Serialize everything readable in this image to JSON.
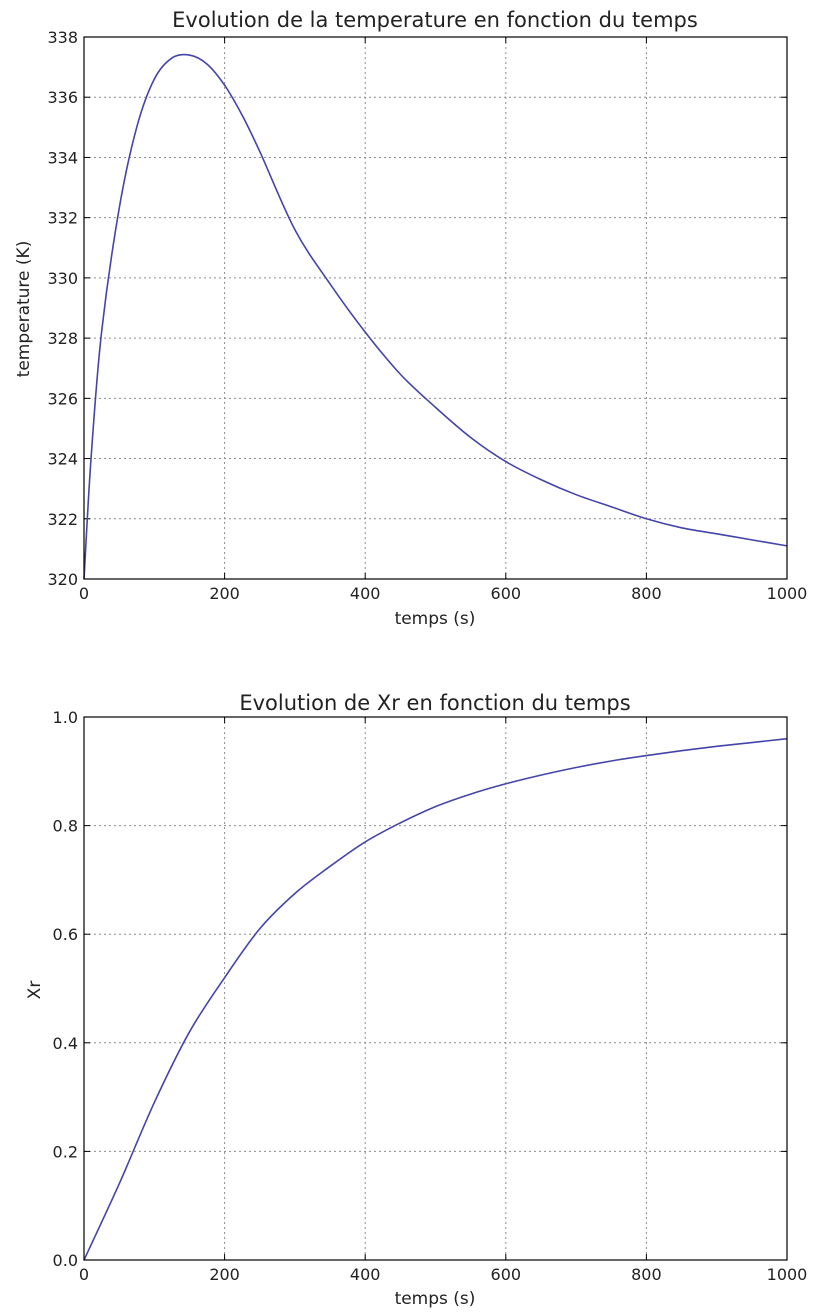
{
  "chart_data": [
    {
      "type": "line",
      "title": "Evolution de la temperature en fonction du temps",
      "xlabel": "temps (s)",
      "ylabel": "temperature (K)",
      "xlim": [
        0,
        1000
      ],
      "ylim": [
        320,
        338
      ],
      "xticks": [
        "0",
        "200",
        "400",
        "600",
        "800",
        "1000"
      ],
      "yticks": [
        "320",
        "322",
        "324",
        "326",
        "328",
        "330",
        "332",
        "334",
        "336",
        "338"
      ],
      "grid": true,
      "series": [
        {
          "color": "#4444aa",
          "x": [
            0,
            10,
            25,
            50,
            75,
            100,
            125,
            150,
            175,
            200,
            225,
            250,
            300,
            350,
            400,
            450,
            500,
            550,
            600,
            650,
            700,
            750,
            800,
            850,
            900,
            950,
            1000
          ],
          "y": [
            320.0,
            324.0,
            328.2,
            332.3,
            335.0,
            336.6,
            337.3,
            337.4,
            337.1,
            336.4,
            335.4,
            334.2,
            331.6,
            329.8,
            328.2,
            326.8,
            325.7,
            324.7,
            323.9,
            323.3,
            322.8,
            322.4,
            322.0,
            321.7,
            321.5,
            321.3,
            321.1
          ]
        }
      ]
    },
    {
      "type": "line",
      "title": "Evolution de Xr en fonction du temps",
      "xlabel": "temps (s)",
      "ylabel": "Xr",
      "xlim": [
        0,
        1000
      ],
      "ylim": [
        0.0,
        1.0
      ],
      "xticks": [
        "0",
        "200",
        "400",
        "600",
        "800",
        "1000"
      ],
      "yticks": [
        "0.0",
        "0.2",
        "0.4",
        "0.6",
        "0.8",
        "1.0"
      ],
      "grid": true,
      "series": [
        {
          "color": "#4444aa",
          "x": [
            0,
            50,
            100,
            150,
            200,
            250,
            300,
            350,
            400,
            450,
            500,
            550,
            600,
            650,
            700,
            750,
            800,
            850,
            900,
            950,
            1000
          ],
          "y": [
            0.0,
            0.14,
            0.29,
            0.42,
            0.52,
            0.61,
            0.675,
            0.725,
            0.77,
            0.805,
            0.835,
            0.858,
            0.877,
            0.893,
            0.907,
            0.919,
            0.929,
            0.938,
            0.946,
            0.953,
            0.96
          ]
        }
      ]
    }
  ]
}
